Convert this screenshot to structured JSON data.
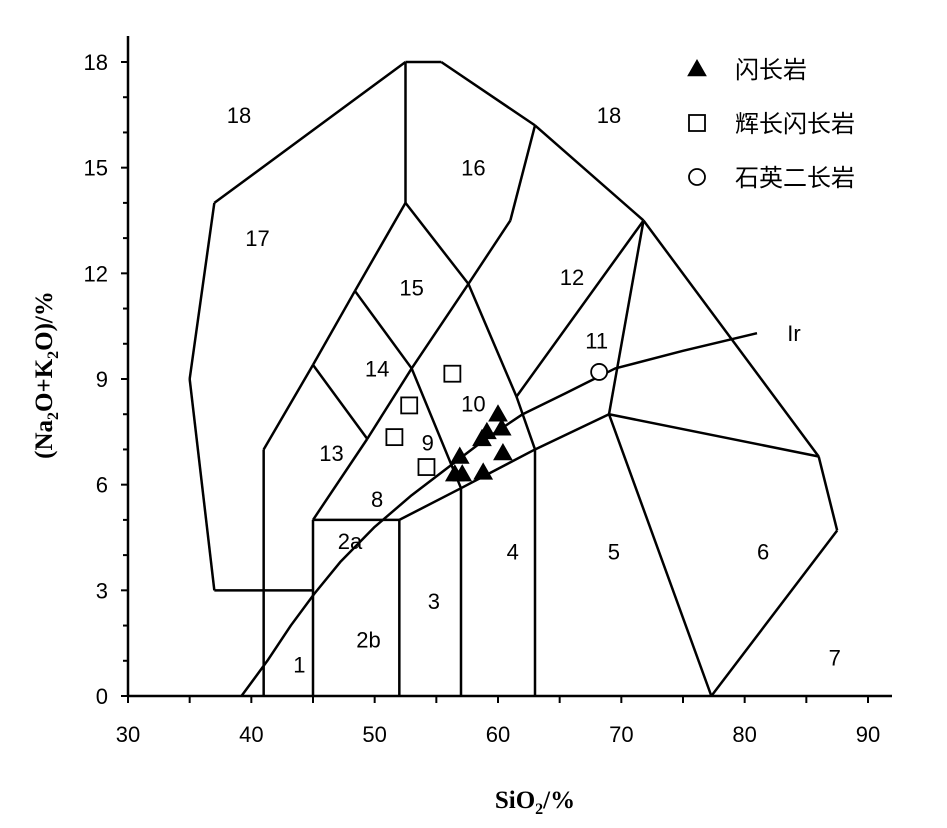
{
  "chart_data": {
    "type": "scatter",
    "xlabel": "SiO2/%",
    "ylabel": "(Na2O+K2O)/%",
    "xlim": [
      30,
      90
    ],
    "ylim": [
      0,
      18
    ],
    "xticks": [
      30,
      40,
      50,
      60,
      70,
      80,
      90
    ],
    "yticks": [
      0,
      3,
      6,
      9,
      12,
      15,
      18
    ],
    "grid": false,
    "legend": "top-right",
    "series": [
      {
        "name": "闪长岩",
        "marker": "filled-triangle",
        "points": [
          [
            56.5,
            6.3
          ],
          [
            56.9,
            6.8
          ],
          [
            57.1,
            6.3
          ],
          [
            58.8,
            6.35
          ],
          [
            58.7,
            7.3
          ],
          [
            59.1,
            7.5
          ],
          [
            60.0,
            8.0
          ],
          [
            60.3,
            7.6
          ],
          [
            60.4,
            6.9
          ]
        ]
      },
      {
        "name": "辉长闪长岩",
        "marker": "open-square",
        "points": [
          [
            56.3,
            9.15
          ],
          [
            52.8,
            8.25
          ],
          [
            51.6,
            7.35
          ],
          [
            54.2,
            6.5
          ]
        ]
      },
      {
        "name": "石英二长岩",
        "marker": "open-circle",
        "points": [
          [
            68.2,
            9.2
          ]
        ]
      }
    ],
    "boundaries": [
      [
        [
          41,
          0
        ],
        [
          41,
          7
        ]
      ],
      [
        [
          41,
          7
        ],
        [
          45,
          9.4
        ]
      ],
      [
        [
          45,
          0
        ],
        [
          45,
          5
        ]
      ],
      [
        [
          45,
          5
        ],
        [
          52,
          5
        ]
      ],
      [
        [
          52,
          0
        ],
        [
          52,
          5
        ]
      ],
      [
        [
          45,
          5
        ],
        [
          49.4,
          7.3
        ]
      ],
      [
        [
          45,
          9.4
        ],
        [
          49.4,
          7.3
        ]
      ],
      [
        [
          49.4,
          7.3
        ],
        [
          53,
          9.3
        ]
      ],
      [
        [
          52,
          5
        ],
        [
          57,
          5.9
        ]
      ],
      [
        [
          57,
          0
        ],
        [
          57,
          5.9
        ]
      ],
      [
        [
          57,
          5.9
        ],
        [
          63,
          7
        ]
      ],
      [
        [
          63,
          0
        ],
        [
          63,
          7
        ]
      ],
      [
        [
          63,
          7
        ],
        [
          69,
          8
        ]
      ],
      [
        [
          69,
          8
        ],
        [
          77.3,
          0
        ]
      ],
      [
        [
          45,
          9.4
        ],
        [
          48.4,
          11.5
        ]
      ],
      [
        [
          48.4,
          11.5
        ],
        [
          53,
          9.3
        ]
      ],
      [
        [
          53,
          9.3
        ],
        [
          57.6,
          11.7
        ]
      ],
      [
        [
          53,
          9.3
        ],
        [
          57,
          5.9
        ]
      ],
      [
        [
          48.4,
          11.5
        ],
        [
          52.5,
          14
        ]
      ],
      [
        [
          52.5,
          14
        ],
        [
          57.6,
          11.7
        ]
      ],
      [
        [
          57.6,
          11.7
        ],
        [
          61.5,
          8.5
        ]
      ],
      [
        [
          57.6,
          11.7
        ],
        [
          61,
          13.5
        ]
      ],
      [
        [
          61,
          13.5
        ],
        [
          63,
          16.2
        ]
      ],
      [
        [
          52.5,
          14
        ],
        [
          52.5,
          18
        ]
      ],
      [
        [
          61.5,
          8.5
        ],
        [
          71.8,
          13.5
        ]
      ],
      [
        [
          71.8,
          13.5
        ],
        [
          69,
          8
        ]
      ],
      [
        [
          63,
          7
        ],
        [
          61.5,
          8.5
        ]
      ],
      [
        [
          69,
          8
        ],
        [
          86,
          6.8
        ]
      ],
      [
        [
          86,
          6.8
        ],
        [
          87.5,
          4.7
        ]
      ],
      [
        [
          87.5,
          4.7
        ],
        [
          77.3,
          0
        ]
      ],
      [
        [
          71.8,
          13.5
        ],
        [
          86,
          6.8
        ]
      ],
      [
        [
          63,
          16.2
        ],
        [
          71.8,
          13.5
        ]
      ],
      [
        [
          52.5,
          18
        ],
        [
          55.4,
          18
        ]
      ],
      [
        [
          55.4,
          18
        ],
        [
          63,
          16.2
        ]
      ],
      [
        [
          52.5,
          18
        ],
        [
          37,
          14
        ]
      ],
      [
        [
          37,
          14
        ],
        [
          35,
          9
        ]
      ],
      [
        [
          35,
          9
        ],
        [
          37,
          3
        ]
      ],
      [
        [
          37,
          3
        ],
        [
          45,
          3
        ]
      ]
    ],
    "ir_curve": [
      [
        39.2,
        0
      ],
      [
        41.3,
        1
      ],
      [
        43.2,
        2
      ],
      [
        45.1,
        2.9
      ],
      [
        47.2,
        3.8
      ],
      [
        50,
        4.8
      ],
      [
        53,
        5.7
      ],
      [
        56,
        6.5
      ],
      [
        59,
        7.3
      ],
      [
        62,
        8
      ],
      [
        65.5,
        8.6
      ],
      [
        69.5,
        9.3
      ],
      [
        75,
        9.8
      ],
      [
        81,
        10.3
      ]
    ],
    "ir_label": {
      "text": "Ir",
      "x": 84,
      "y": 10.3
    },
    "field_labels": [
      {
        "text": "18",
        "x": 39,
        "y": 16.5
      },
      {
        "text": "18",
        "x": 69,
        "y": 16.5
      },
      {
        "text": "17",
        "x": 40.5,
        "y": 13
      },
      {
        "text": "16",
        "x": 58,
        "y": 15
      },
      {
        "text": "15",
        "x": 53,
        "y": 11.6
      },
      {
        "text": "14",
        "x": 50.2,
        "y": 9.3
      },
      {
        "text": "12",
        "x": 66,
        "y": 11.9
      },
      {
        "text": "11",
        "x": 68,
        "y": 10.1
      },
      {
        "text": "10",
        "x": 58,
        "y": 8.3
      },
      {
        "text": "9",
        "x": 54.3,
        "y": 7.2
      },
      {
        "text": "13",
        "x": 46.5,
        "y": 6.9
      },
      {
        "text": "8",
        "x": 50.2,
        "y": 5.6
      },
      {
        "text": "2a",
        "x": 48,
        "y": 4.4
      },
      {
        "text": "2b",
        "x": 49.5,
        "y": 1.6
      },
      {
        "text": "1",
        "x": 43.9,
        "y": 0.9
      },
      {
        "text": "3",
        "x": 54.8,
        "y": 2.7
      },
      {
        "text": "4",
        "x": 61.2,
        "y": 4.1
      },
      {
        "text": "5",
        "x": 69.4,
        "y": 4.1
      },
      {
        "text": "6",
        "x": 81.5,
        "y": 4.1
      },
      {
        "text": "7",
        "x": 87.3,
        "y": 1.1
      }
    ]
  },
  "legend": {
    "items": [
      {
        "label": "闪长岩",
        "marker": "filled-triangle"
      },
      {
        "label": "辉长闪长岩",
        "marker": "open-square"
      },
      {
        "label": "石英二长岩",
        "marker": "open-circle"
      }
    ]
  }
}
